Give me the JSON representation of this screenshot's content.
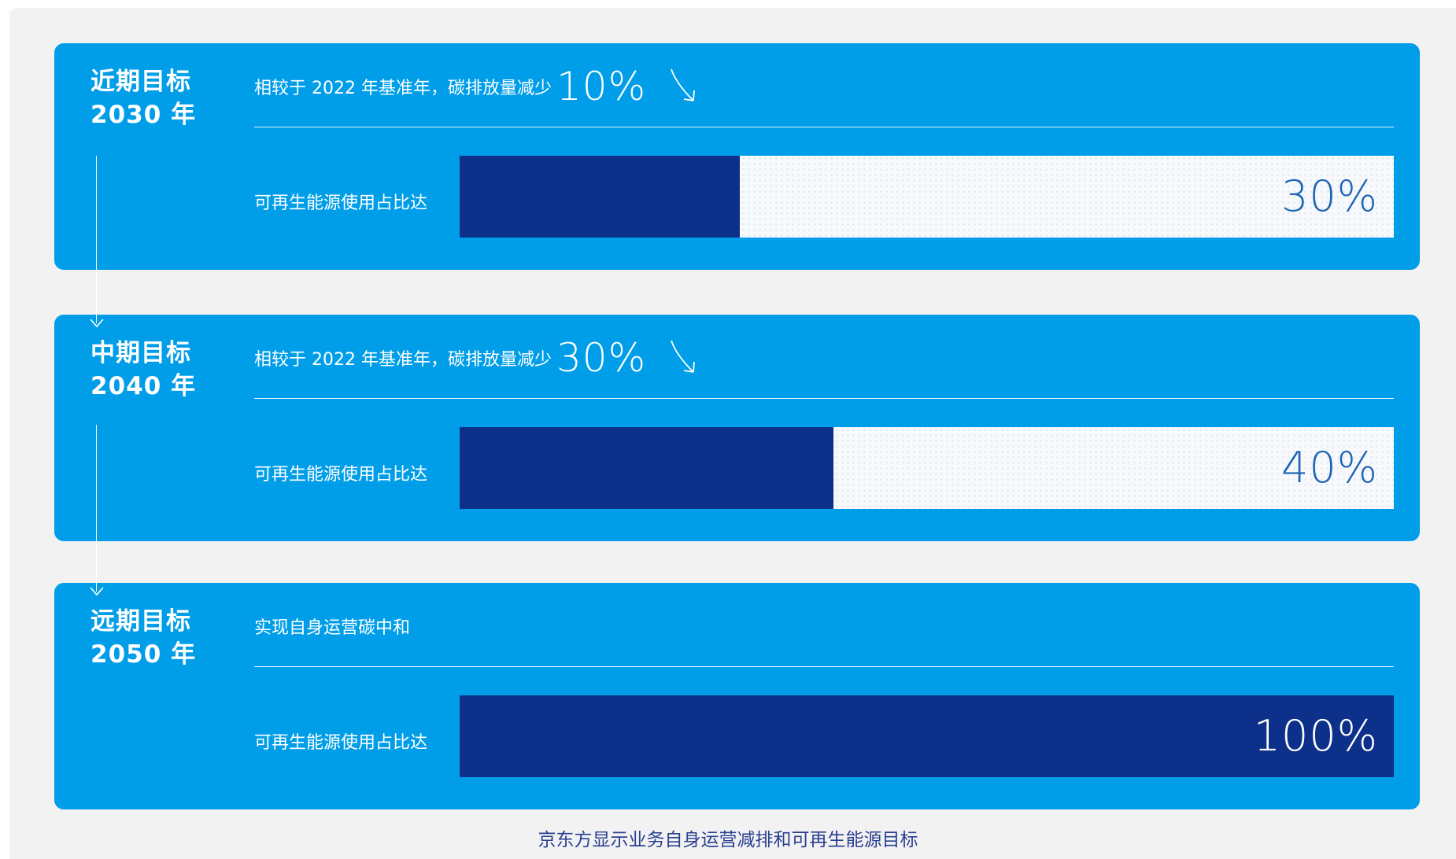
{
  "colors": {
    "card_blue": "#009ee8",
    "fill_navy": "#0d318a",
    "value_blue": "#1e64b4",
    "caption_navy": "#2a3f8f"
  },
  "goals": [
    {
      "title": "近期目标",
      "year": "2030 年",
      "reduction_text": "相较于 2022 年基准年，碳排放量减少",
      "reduction_value": "10%",
      "reduction_icon": "down-arrow-icon",
      "bar_label": "可再生能源使用占比达",
      "renewable_share": 0.3,
      "renewable_value": "30%"
    },
    {
      "title": "中期目标",
      "year": "2040 年",
      "reduction_text": "相较于 2022 年基准年，碳排放量减少",
      "reduction_value": "30%",
      "reduction_icon": "down-arrow-icon",
      "bar_label": "可再生能源使用占比达",
      "renewable_share": 0.4,
      "renewable_value": "40%"
    },
    {
      "title": "远期目标",
      "year": "2050 年",
      "statement": "实现自身运营碳中和",
      "bar_label": "可再生能源使用占比达",
      "renewable_share": 1.0,
      "renewable_value": "100%"
    }
  ],
  "caption": "京东方显示业务自身运营减排和可再生能源目标"
}
